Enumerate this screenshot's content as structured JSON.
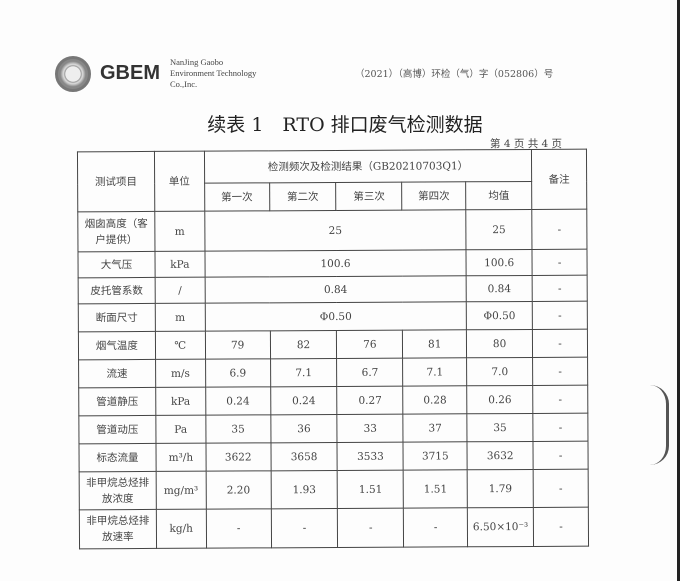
{
  "header": {
    "logo_text": "GBEM",
    "company_lines": [
      "NanJing Gaobo",
      "Environment Technology",
      "Co.,Inc."
    ],
    "report_no": "（2021）（高博）环检（气）字（052806）号"
  },
  "title": "续表 1　RTO 排口废气检测数据",
  "page_info": "第 4 页 共 4 页",
  "table": {
    "headers": {
      "item": "测试项目",
      "unit": "单位",
      "group": "检测频次及检测结果（GB20210703Q1）",
      "remark": "备注",
      "runs": [
        "第一次",
        "第二次",
        "第三次",
        "第四次",
        "均值"
      ]
    },
    "rows": [
      {
        "item": "烟囱高度（客户提供）",
        "unit": "m",
        "merged": "25",
        "avg": "25",
        "remark": "-"
      },
      {
        "item": "大气压",
        "unit": "kPa",
        "merged": "100.6",
        "avg": "100.6",
        "remark": "-"
      },
      {
        "item": "皮托管系数",
        "unit": "/",
        "merged": "0.84",
        "avg": "0.84",
        "remark": "-"
      },
      {
        "item": "断面尺寸",
        "unit": "m",
        "merged": "Φ0.50",
        "avg": "Φ0.50",
        "remark": "-"
      },
      {
        "item": "烟气温度",
        "unit": "℃",
        "values": [
          "79",
          "82",
          "76",
          "81"
        ],
        "avg": "80",
        "remark": "-"
      },
      {
        "item": "流速",
        "unit": "m/s",
        "values": [
          "6.9",
          "7.1",
          "6.7",
          "7.1"
        ],
        "avg": "7.0",
        "remark": "-"
      },
      {
        "item": "管道静压",
        "unit": "kPa",
        "values": [
          "0.24",
          "0.24",
          "0.27",
          "0.28"
        ],
        "avg": "0.26",
        "remark": "-"
      },
      {
        "item": "管道动压",
        "unit": "Pa",
        "values": [
          "35",
          "36",
          "33",
          "37"
        ],
        "avg": "35",
        "remark": "-"
      },
      {
        "item": "标态流量",
        "unit": "m³/h",
        "values": [
          "3622",
          "3658",
          "3533",
          "3715"
        ],
        "avg": "3632",
        "remark": "-"
      },
      {
        "item": "非甲烷总烃排放浓度",
        "unit": "mg/m³",
        "values": [
          "2.20",
          "1.93",
          "1.51",
          "1.51"
        ],
        "avg": "1.79",
        "remark": "-"
      },
      {
        "item": "非甲烷总烃排放速率",
        "unit": "kg/h",
        "values": [
          "-",
          "-",
          "-",
          "-"
        ],
        "avg": "6.50×10⁻³",
        "remark": "-"
      }
    ]
  }
}
